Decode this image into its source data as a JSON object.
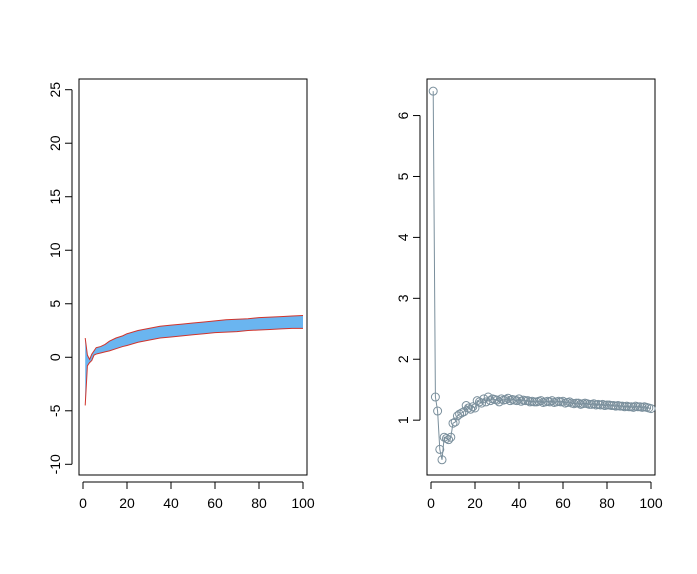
{
  "chart_data": [
    {
      "type": "area",
      "title": "",
      "xlabel": "",
      "ylabel": "",
      "xlim": [
        0,
        100
      ],
      "ylim": [
        -11,
        26
      ],
      "xticks": [
        0,
        20,
        40,
        60,
        80,
        100
      ],
      "yticks": [
        -10,
        -5,
        0,
        5,
        10,
        15,
        20,
        25
      ],
      "fill_color": "#6ab5f0",
      "edge_color": "#d0342c",
      "x": [
        1,
        2,
        3,
        4,
        5,
        6,
        8,
        10,
        12,
        15,
        18,
        20,
        25,
        30,
        35,
        40,
        45,
        50,
        55,
        60,
        65,
        70,
        75,
        80,
        85,
        90,
        95,
        100
      ],
      "upper": [
        1.8,
        0.2,
        -0.2,
        0.3,
        0.6,
        0.9,
        1.0,
        1.2,
        1.5,
        1.8,
        2.0,
        2.2,
        2.5,
        2.7,
        2.9,
        3.0,
        3.1,
        3.2,
        3.3,
        3.4,
        3.5,
        3.55,
        3.6,
        3.7,
        3.75,
        3.8,
        3.85,
        3.9
      ],
      "lower": [
        -4.5,
        -0.8,
        -0.5,
        -0.3,
        0.2,
        0.3,
        0.4,
        0.5,
        0.6,
        0.8,
        1.0,
        1.1,
        1.4,
        1.6,
        1.8,
        1.9,
        2.0,
        2.1,
        2.2,
        2.3,
        2.35,
        2.4,
        2.5,
        2.55,
        2.6,
        2.65,
        2.7,
        2.7
      ]
    },
    {
      "type": "line",
      "title": "",
      "xlabel": "",
      "ylabel": "",
      "xlim": [
        0,
        100
      ],
      "ylim": [
        0.1,
        6.6
      ],
      "xticks": [
        0,
        20,
        40,
        60,
        80,
        100
      ],
      "yticks": [
        1,
        2,
        3,
        4,
        5,
        6
      ],
      "color": "#7a8f9c",
      "marker": "open-circle",
      "x": [
        1,
        2,
        3,
        4,
        5,
        6,
        7,
        8,
        9,
        10,
        11,
        12,
        13,
        14,
        15,
        16,
        17,
        18,
        19,
        20,
        21,
        22,
        23,
        24,
        25,
        26,
        27,
        28,
        29,
        30,
        31,
        32,
        33,
        34,
        35,
        36,
        37,
        38,
        39,
        40,
        41,
        42,
        43,
        44,
        45,
        46,
        47,
        48,
        49,
        50,
        51,
        52,
        53,
        54,
        55,
        56,
        57,
        58,
        59,
        60,
        61,
        62,
        63,
        64,
        65,
        66,
        67,
        68,
        69,
        70,
        71,
        72,
        73,
        74,
        75,
        76,
        77,
        78,
        79,
        80,
        81,
        82,
        83,
        84,
        85,
        86,
        87,
        88,
        89,
        90,
        91,
        92,
        93,
        94,
        95,
        96,
        97,
        98,
        99,
        100
      ],
      "y": [
        6.4,
        1.38,
        1.15,
        0.52,
        0.35,
        0.72,
        0.7,
        0.68,
        0.72,
        0.95,
        0.97,
        1.07,
        1.1,
        1.12,
        1.14,
        1.24,
        1.2,
        1.18,
        1.22,
        1.2,
        1.32,
        1.3,
        1.28,
        1.35,
        1.3,
        1.38,
        1.32,
        1.35,
        1.34,
        1.33,
        1.3,
        1.35,
        1.33,
        1.34,
        1.36,
        1.32,
        1.34,
        1.33,
        1.32,
        1.35,
        1.31,
        1.33,
        1.32,
        1.32,
        1.3,
        1.31,
        1.3,
        1.3,
        1.31,
        1.32,
        1.29,
        1.3,
        1.31,
        1.3,
        1.32,
        1.29,
        1.3,
        1.31,
        1.3,
        1.31,
        1.28,
        1.29,
        1.3,
        1.28,
        1.27,
        1.28,
        1.28,
        1.26,
        1.27,
        1.28,
        1.27,
        1.26,
        1.26,
        1.27,
        1.25,
        1.26,
        1.25,
        1.26,
        1.24,
        1.25,
        1.25,
        1.24,
        1.24,
        1.23,
        1.24,
        1.23,
        1.23,
        1.22,
        1.23,
        1.22,
        1.22,
        1.21,
        1.23,
        1.22,
        1.22,
        1.21,
        1.22,
        1.21,
        1.2,
        1.19
      ]
    }
  ]
}
